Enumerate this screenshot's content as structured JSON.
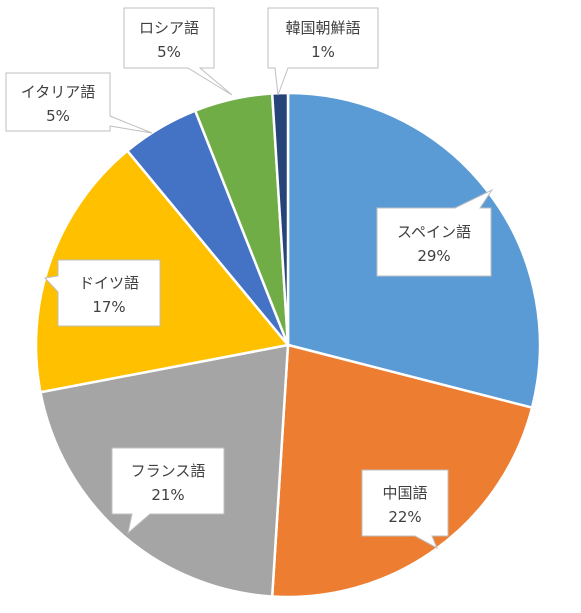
{
  "chart_data": {
    "type": "pie",
    "title": "",
    "start_angle_deg": 0,
    "direction": "clockwise",
    "slices": [
      {
        "label": "スペイン語",
        "value": 29,
        "value_label": "29%",
        "color": "#5b9bd5"
      },
      {
        "label": "中国語",
        "value": 22,
        "value_label": "22%",
        "color": "#ed7d31"
      },
      {
        "label": "フランス語",
        "value": 21,
        "value_label": "21%",
        "color": "#a5a5a5"
      },
      {
        "label": "ドイツ語",
        "value": 17,
        "value_label": "17%",
        "color": "#ffc000"
      },
      {
        "label": "イタリア語",
        "value": 5,
        "value_label": "5%",
        "color": "#4472c4"
      },
      {
        "label": "ロシア語",
        "value": 5,
        "value_label": "5%",
        "color": "#70ad47"
      },
      {
        "label": "韓国朝鮮語",
        "value": 1,
        "value_label": "1%",
        "color": "#264478"
      }
    ],
    "legend": "none",
    "data_labels": "callouts"
  }
}
